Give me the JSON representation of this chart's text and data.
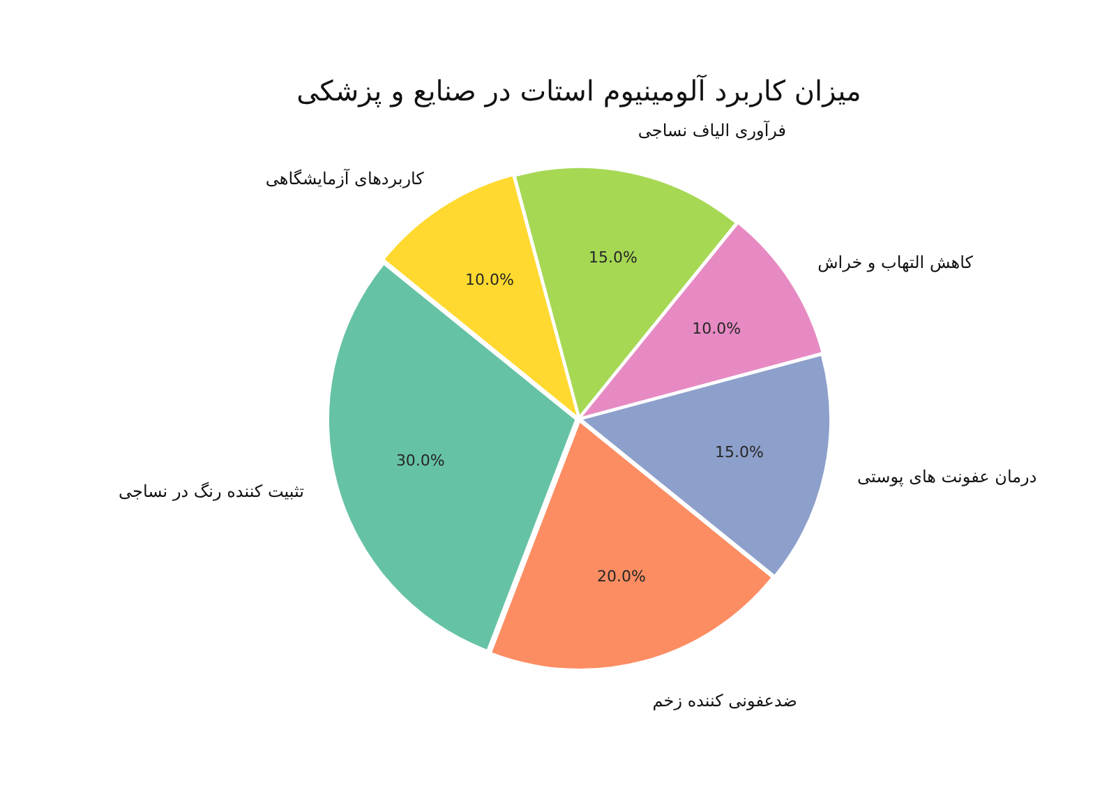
{
  "chart_data": {
    "type": "pie",
    "title": "میزان کاربرد آلومینیوم استات در صنایع و پزشکی",
    "categories": [
      "فرآوری الیاف نساجی",
      "کاهش التهاب و خراش",
      "درمان عفونت های پوستی",
      "ضدعفونی کننده زخم",
      "تثبیت کننده رنگ در نساجی",
      "کاربردهای آزمایشگاهی"
    ],
    "values": [
      15,
      10,
      15,
      20,
      30,
      10
    ],
    "colors": [
      "#a6d854",
      "#e78ac3",
      "#8da0cb",
      "#fc8d62",
      "#66c2a5",
      "#ffd92f"
    ],
    "value_labels": [
      "15.0%",
      "10.0%",
      "15.0%",
      "20.0%",
      "30.0%",
      "10.0%"
    ]
  }
}
